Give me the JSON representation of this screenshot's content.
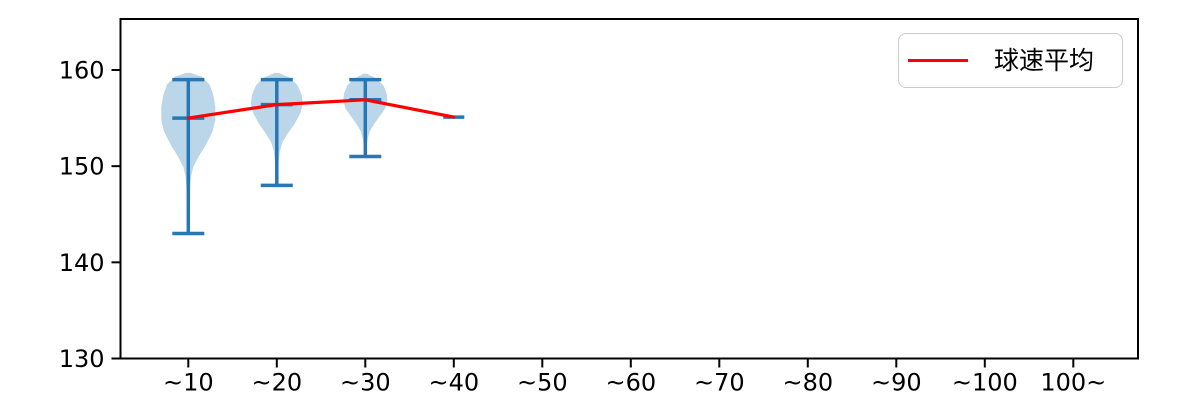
{
  "chart_data": {
    "type": "violin",
    "title": "",
    "xlabel": "",
    "ylabel": "",
    "categories": [
      "~10",
      "~20",
      "~30",
      "~40",
      "~50",
      "~60",
      "~70",
      "~80",
      "~90",
      "~100",
      "100~"
    ],
    "y_ticks": [
      130,
      140,
      150,
      160
    ],
    "ylim": [
      130,
      165.3
    ],
    "grid": false,
    "legend": {
      "position": "upper right",
      "entries": [
        {
          "label": "球速平均",
          "color": "#ff0000",
          "type": "line"
        }
      ]
    },
    "violins": [
      {
        "category": "~10",
        "min": 143,
        "max": 159,
        "mean": 155.0,
        "width": 0.61,
        "profile": [
          [
            159.7,
            0.08
          ],
          [
            159.3,
            0.5
          ],
          [
            158.5,
            0.78
          ],
          [
            157.5,
            0.92
          ],
          [
            156.2,
            1.0
          ],
          [
            154.8,
            1.0
          ],
          [
            153.6,
            0.9
          ],
          [
            152.2,
            0.65
          ],
          [
            151.0,
            0.38
          ],
          [
            149.9,
            0.18
          ],
          [
            148.9,
            0.1
          ],
          [
            147.5,
            0.06
          ],
          [
            145.5,
            0.05
          ],
          [
            143.5,
            0.04
          ],
          [
            142.7,
            0.0
          ]
        ]
      },
      {
        "category": "~20",
        "min": 148,
        "max": 159,
        "mean": 156.4,
        "width": 0.59,
        "profile": [
          [
            159.7,
            0.08
          ],
          [
            159.2,
            0.5
          ],
          [
            158.4,
            0.8
          ],
          [
            157.4,
            0.95
          ],
          [
            156.5,
            1.0
          ],
          [
            155.5,
            0.9
          ],
          [
            154.4,
            0.68
          ],
          [
            153.4,
            0.42
          ],
          [
            152.5,
            0.22
          ],
          [
            151.6,
            0.12
          ],
          [
            150.5,
            0.07
          ],
          [
            149.2,
            0.05
          ],
          [
            147.8,
            0.0
          ]
        ]
      },
      {
        "category": "~30",
        "min": 151,
        "max": 159,
        "mean": 156.9,
        "width": 0.5,
        "profile": [
          [
            159.6,
            0.08
          ],
          [
            159.1,
            0.5
          ],
          [
            158.4,
            0.82
          ],
          [
            157.6,
            0.96
          ],
          [
            156.9,
            1.0
          ],
          [
            156.0,
            0.9
          ],
          [
            155.2,
            0.65
          ],
          [
            154.4,
            0.4
          ],
          [
            153.6,
            0.2
          ],
          [
            152.8,
            0.11
          ],
          [
            151.9,
            0.06
          ],
          [
            150.7,
            0.0
          ]
        ]
      },
      {
        "category": "~40",
        "min": 155.1,
        "max": 155.1,
        "mean": 155.1,
        "width": 0.24,
        "profile": []
      }
    ],
    "mean_series": {
      "name": "球速平均",
      "categories": [
        "~10",
        "~20",
        "~30",
        "~40"
      ],
      "values": [
        155.0,
        156.4,
        156.9,
        155.1
      ]
    },
    "colors": {
      "violin_fill": "#1f77b4",
      "violin_fill_opacity": 0.3,
      "violin_edge": "#2777b4",
      "mean_line": "#ff0000",
      "axis": "#000000",
      "legend_border": "#cccccc"
    }
  }
}
